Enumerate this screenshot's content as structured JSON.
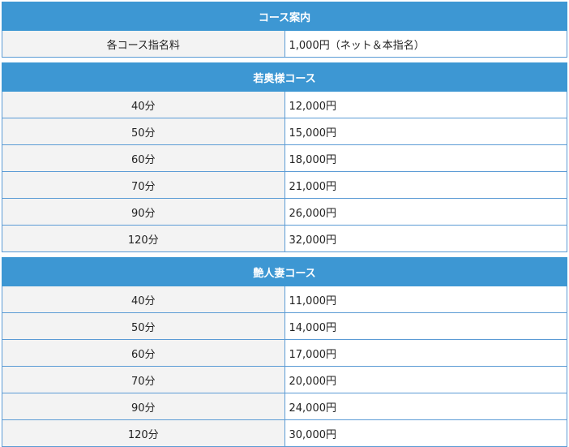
{
  "sections": [
    {
      "title": "コース案内",
      "rows": [
        {
          "label": "各コース指名料",
          "price": "1,000円（ネット＆本指名）"
        }
      ]
    },
    {
      "title": "若奥様コース",
      "rows": [
        {
          "label": "40分",
          "price": "12,000円"
        },
        {
          "label": "50分",
          "price": "15,000円"
        },
        {
          "label": "60分",
          "price": "18,000円"
        },
        {
          "label": "70分",
          "price": "21,000円"
        },
        {
          "label": "90分",
          "price": "26,000円"
        },
        {
          "label": "120分",
          "price": "32,000円"
        }
      ]
    },
    {
      "title": "艶人妻コース",
      "rows": [
        {
          "label": "40分",
          "price": "11,000円"
        },
        {
          "label": "50分",
          "price": "14,000円"
        },
        {
          "label": "60分",
          "price": "17,000円"
        },
        {
          "label": "70分",
          "price": "20,000円"
        },
        {
          "label": "90分",
          "price": "24,000円"
        },
        {
          "label": "120分",
          "price": "30,000円"
        }
      ]
    }
  ],
  "colors": {
    "header": "#3d97d3",
    "label_bg": "#f3f3f3",
    "border": "#5b9bd5"
  }
}
